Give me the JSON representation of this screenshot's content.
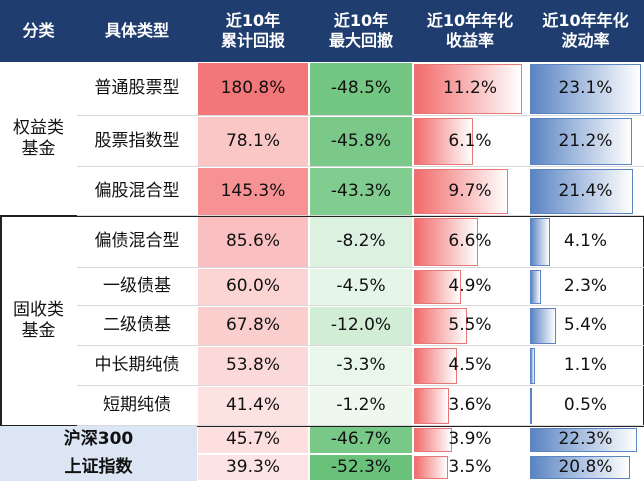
{
  "header": [
    [
      "分类"
    ],
    [
      "具体类型"
    ],
    [
      "近10年",
      "累计回报"
    ],
    [
      "近10年",
      "最大回撤"
    ],
    [
      "近10年年化",
      "收益率"
    ],
    [
      "近10年年化",
      "波动率"
    ]
  ],
  "groups": [
    {
      "label": [
        "权益类",
        "基金"
      ],
      "rows": [
        [
          "普通股票型",
          "180.8%",
          "-48.5%",
          "11.2%",
          "23.1%"
        ],
        [
          "股票指数型",
          "78.1%",
          "-45.8%",
          "6.1%",
          "21.2%"
        ],
        [
          "偏股混合型",
          "145.3%",
          "-43.3%",
          "9.7%",
          "21.4%"
        ]
      ]
    },
    {
      "label": [
        "固收类",
        "基金"
      ],
      "rows": [
        [
          "偏债混合型",
          "85.6%",
          "-8.2%",
          "6.6%",
          "4.1%"
        ],
        [
          "一级债基",
          "60.0%",
          "-4.5%",
          "4.9%",
          "2.3%"
        ],
        [
          "二级债基",
          "67.8%",
          "-12.0%",
          "5.5%",
          "5.4%"
        ],
        [
          "中长期纯债",
          "53.8%",
          "-3.3%",
          "4.5%",
          "1.1%"
        ],
        [
          "短期纯债",
          "41.4%",
          "-1.2%",
          "3.6%",
          "0.5%"
        ]
      ]
    }
  ],
  "indices": [
    [
      "沪深300",
      "45.7%",
      "-46.7%",
      "3.9%",
      "22.3%"
    ],
    [
      "上证指数",
      "39.3%",
      "-52.3%",
      "3.5%",
      "20.8%"
    ]
  ]
}
